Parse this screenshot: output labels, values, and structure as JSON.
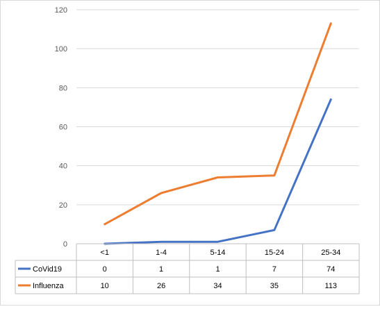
{
  "chart_data": {
    "type": "line",
    "title": "",
    "xlabel": "",
    "ylabel": "",
    "categories": [
      "<1",
      "1-4",
      "5-14",
      "15-24",
      "25-34"
    ],
    "ylim": [
      0,
      120
    ],
    "yticks": [
      0,
      20,
      40,
      60,
      80,
      100,
      120
    ],
    "grid": true,
    "legend": "data-table-left",
    "series": [
      {
        "name": "CoVid19",
        "values": [
          0,
          1,
          1,
          7,
          74
        ],
        "labels": [
          "0",
          "1",
          "1",
          "7",
          "74"
        ],
        "color": "#4472C4"
      },
      {
        "name": "Influenza",
        "values": [
          10,
          26,
          34,
          35,
          113
        ],
        "labels": [
          "10",
          "26",
          "34",
          "35",
          "113"
        ],
        "color": "#ED7D31"
      }
    ],
    "gridline_color": "#D9D9D9",
    "axis_text_color": "#595959",
    "table_border_color": "#BFBFBF"
  }
}
